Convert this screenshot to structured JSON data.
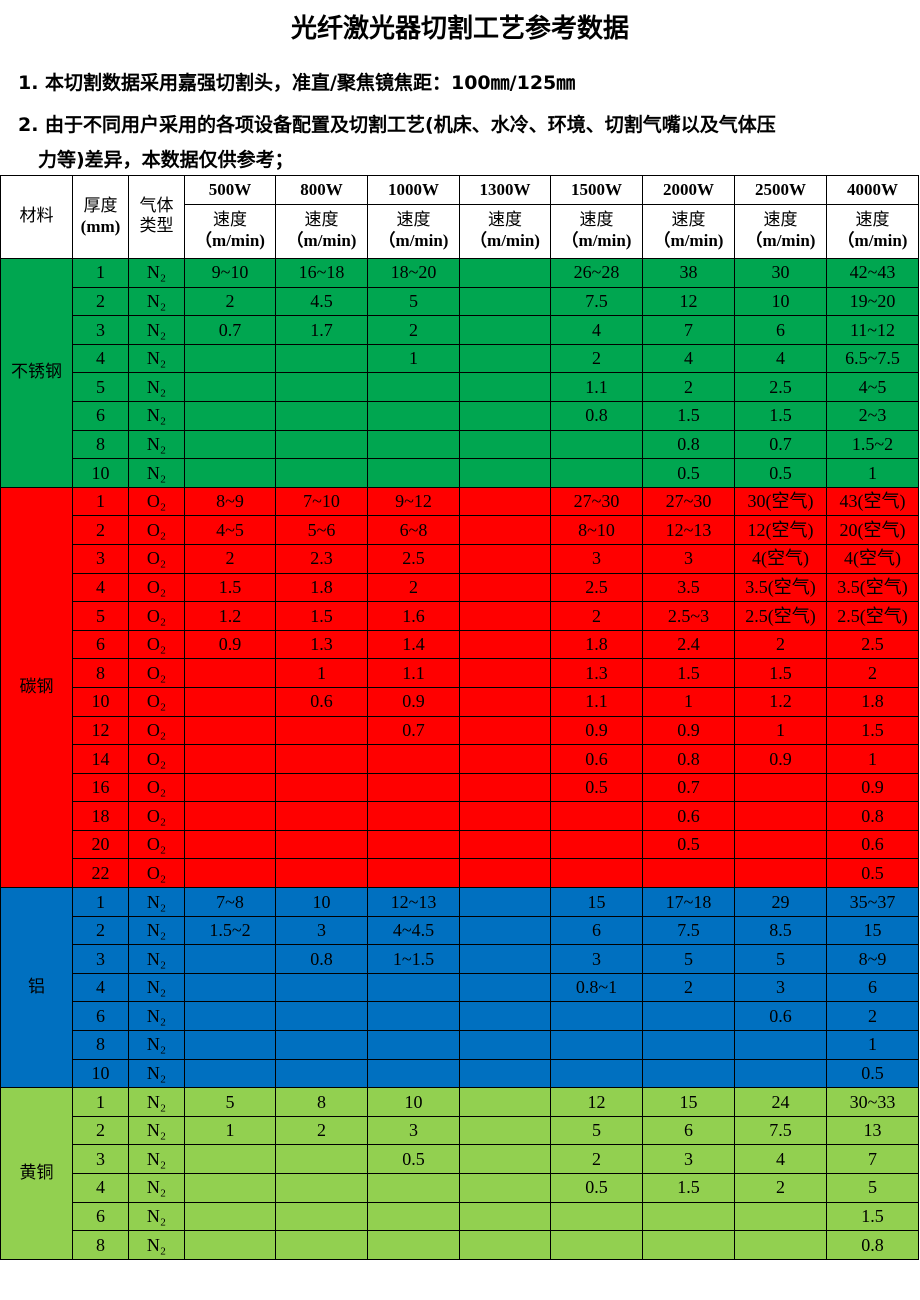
{
  "title": "光纤激光器切割工艺参考数据",
  "notes": [
    "1. 本切割数据采用嘉强切割头，准直/聚焦镜焦距：100㎜/125㎜",
    "2. 由于不同用户采用的各项设备配置及切割工艺(机床、水冷、环境、切割气嘴以及气体压",
    "力等)差异，本数据仅供参考；"
  ],
  "table": {
    "header": {
      "material": "材料",
      "thickness": "厚度",
      "thickness_unit": "(mm)",
      "gas": "气体",
      "gas2": "类型",
      "speed": "速度",
      "speed_unit": "（m/min)",
      "powers": [
        "500W",
        "800W",
        "1000W",
        "1300W",
        "1500W",
        "2000W",
        "2500W",
        "4000W"
      ]
    },
    "groups": [
      {
        "material": "不锈钢",
        "color": "#00a650",
        "rows": [
          [
            "1",
            "N₂",
            "9~10",
            "16~18",
            "18~20",
            "",
            "26~28",
            "38",
            "30",
            "42~43"
          ],
          [
            "2",
            "N₂",
            "2",
            "4.5",
            "5",
            "",
            "7.5",
            "12",
            "10",
            "19~20"
          ],
          [
            "3",
            "N₂",
            "0.7",
            "1.7",
            "2",
            "",
            "4",
            "7",
            "6",
            "11~12"
          ],
          [
            "4",
            "N₂",
            "",
            "",
            "1",
            "",
            "2",
            "4",
            "4",
            "6.5~7.5"
          ],
          [
            "5",
            "N₂",
            "",
            "",
            "",
            "",
            "1.1",
            "2",
            "2.5",
            "4~5"
          ],
          [
            "6",
            "N₂",
            "",
            "",
            "",
            "",
            "0.8",
            "1.5",
            "1.5",
            "2~3"
          ],
          [
            "8",
            "N₂",
            "",
            "",
            "",
            "",
            "",
            "0.8",
            "0.7",
            "1.5~2"
          ],
          [
            "10",
            "N₂",
            "",
            "",
            "",
            "",
            "",
            "0.5",
            "0.5",
            "1"
          ]
        ]
      },
      {
        "material": "碳钢",
        "color": "#ff0000",
        "rows": [
          [
            "1",
            "O₂",
            "8~9",
            "7~10",
            "9~12",
            "",
            "27~30",
            "27~30",
            "30(空气)",
            "43(空气)"
          ],
          [
            "2",
            "O₂",
            "4~5",
            "5~6",
            "6~8",
            "",
            "8~10",
            "12~13",
            "12(空气)",
            "20(空气)"
          ],
          [
            "3",
            "O₂",
            "2",
            "2.3",
            "2.5",
            "",
            "3",
            "3",
            "4(空气)",
            "4(空气)"
          ],
          [
            "4",
            "O₂",
            "1.5",
            "1.8",
            "2",
            "",
            "2.5",
            "3.5",
            "3.5(空气)",
            "3.5(空气)"
          ],
          [
            "5",
            "O₂",
            "1.2",
            "1.5",
            "1.6",
            "",
            "2",
            "2.5~3",
            "2.5(空气)",
            "2.5(空气)"
          ],
          [
            "6",
            "O₂",
            "0.9",
            "1.3",
            "1.4",
            "",
            "1.8",
            "2.4",
            "2",
            "2.5"
          ],
          [
            "8",
            "O₂",
            "",
            "1",
            "1.1",
            "",
            "1.3",
            "1.5",
            "1.5",
            "2"
          ],
          [
            "10",
            "O₂",
            "",
            "0.6",
            "0.9",
            "",
            "1.1",
            "1",
            "1.2",
            "1.8"
          ],
          [
            "12",
            "O₂",
            "",
            "",
            "0.7",
            "",
            "0.9",
            "0.9",
            "1",
            "1.5"
          ],
          [
            "14",
            "O₂",
            "",
            "",
            "",
            "",
            "0.6",
            "0.8",
            "0.9",
            "1"
          ],
          [
            "16",
            "O₂",
            "",
            "",
            "",
            "",
            "0.5",
            "0.7",
            "",
            "0.9"
          ],
          [
            "18",
            "O₂",
            "",
            "",
            "",
            "",
            "",
            "0.6",
            "",
            "0.8"
          ],
          [
            "20",
            "O₂",
            "",
            "",
            "",
            "",
            "",
            "0.5",
            "",
            "0.6"
          ],
          [
            "22",
            "O₂",
            "",
            "",
            "",
            "",
            "",
            "",
            "",
            "0.5"
          ]
        ]
      },
      {
        "material": "铝",
        "color": "#0070c0",
        "rows": [
          [
            "1",
            "N₂",
            "7~8",
            "10",
            "12~13",
            "",
            "15",
            "17~18",
            "29",
            "35~37"
          ],
          [
            "2",
            "N₂",
            "1.5~2",
            "3",
            "4~4.5",
            "",
            "6",
            "7.5",
            "8.5",
            "15"
          ],
          [
            "3",
            "N₂",
            "",
            "0.8",
            "1~1.5",
            "",
            "3",
            "5",
            "5",
            "8~9"
          ],
          [
            "4",
            "N₂",
            "",
            "",
            "",
            "",
            "0.8~1",
            "2",
            "3",
            "6"
          ],
          [
            "6",
            "N₂",
            "",
            "",
            "",
            "",
            "",
            "",
            "0.6",
            "2"
          ],
          [
            "8",
            "N₂",
            "",
            "",
            "",
            "",
            "",
            "",
            "",
            "1"
          ],
          [
            "10",
            "N₂",
            "",
            "",
            "",
            "",
            "",
            "",
            "",
            "0.5"
          ]
        ]
      },
      {
        "material": "黄铜",
        "color": "#92d050",
        "rows": [
          [
            "1",
            "N₂",
            "5",
            "8",
            "10",
            "",
            "12",
            "15",
            "24",
            "30~33"
          ],
          [
            "2",
            "N₂",
            "1",
            "2",
            "3",
            "",
            "5",
            "6",
            "7.5",
            "13"
          ],
          [
            "3",
            "N₂",
            "",
            "",
            "0.5",
            "",
            "2",
            "3",
            "4",
            "7"
          ],
          [
            "4",
            "N₂",
            "",
            "",
            "",
            "",
            "0.5",
            "1.5",
            "2",
            "5"
          ],
          [
            "6",
            "N₂",
            "",
            "",
            "",
            "",
            "",
            "",
            "",
            "1.5"
          ],
          [
            "8",
            "N₂",
            "",
            "",
            "",
            "",
            "",
            "",
            "",
            "0.8"
          ]
        ]
      }
    ]
  }
}
